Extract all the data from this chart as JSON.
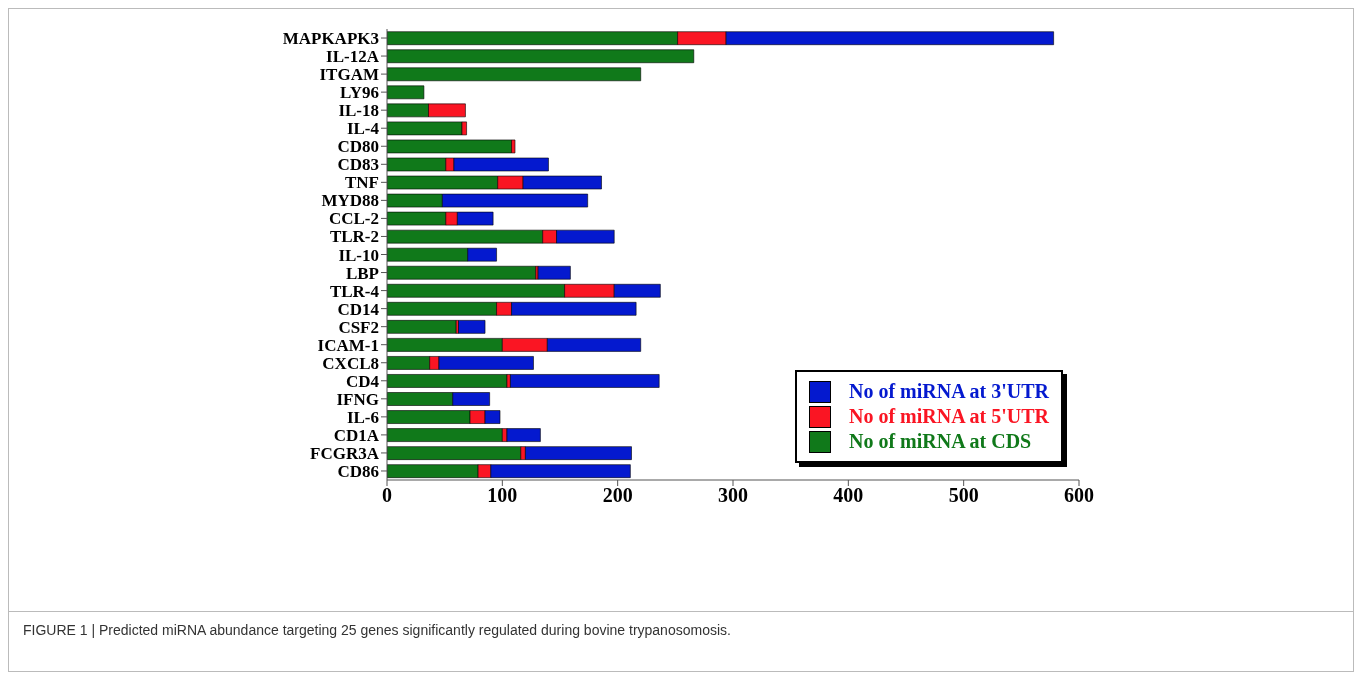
{
  "chart_data": {
    "type": "bar",
    "orientation": "horizontal",
    "stacked": true,
    "categories": [
      "MAPKAPK3",
      "IL-12A",
      "ITGAM",
      "LY96",
      "IL-18",
      "IL-4",
      "CD80",
      "CD83",
      "TNF",
      "MYD88",
      "CCL-2",
      "TLR-2",
      "IL-10",
      "LBP",
      "TLR-4",
      "CD14",
      "CSF2",
      "ICAM-1",
      "CXCL8",
      "CD4",
      "IFNG",
      "IL-6",
      "CD1A",
      "FCGR3A",
      "CD86"
    ],
    "series": [
      {
        "name": "No of miRNA at CDS",
        "color": "#10791a",
        "values": [
          252,
          266,
          220,
          32,
          36,
          65,
          108,
          51,
          96,
          48,
          51,
          135,
          70,
          129,
          154,
          95,
          60,
          100,
          37,
          104,
          57,
          72,
          100,
          116,
          79
        ]
      },
      {
        "name": "No of miRNA at 5'UTR",
        "color": "#fa1523",
        "values": [
          42,
          null,
          null,
          null,
          32,
          4,
          3,
          7,
          22,
          null,
          10,
          12,
          null,
          2,
          43,
          13,
          2,
          39,
          8,
          3,
          null,
          13,
          4,
          4,
          11
        ]
      },
      {
        "name": "No of miRNA at 3'UTR",
        "color": "#0419cf",
        "values": [
          284,
          null,
          null,
          null,
          null,
          null,
          null,
          82,
          68,
          126,
          31,
          50,
          25,
          28,
          40,
          108,
          23,
          81,
          82,
          129,
          32,
          13,
          29,
          92,
          121
        ]
      }
    ],
    "xlim": [
      0,
      600
    ],
    "xticks": [
      0,
      100,
      200,
      300,
      400,
      500,
      600
    ],
    "grid": false,
    "legend": "bottom right",
    "annotations": [
      "FIGURE 1 | Predicted miRNA abundance targeting 25 genes significantly regulated during bovine trypanosomosis."
    ]
  }
}
